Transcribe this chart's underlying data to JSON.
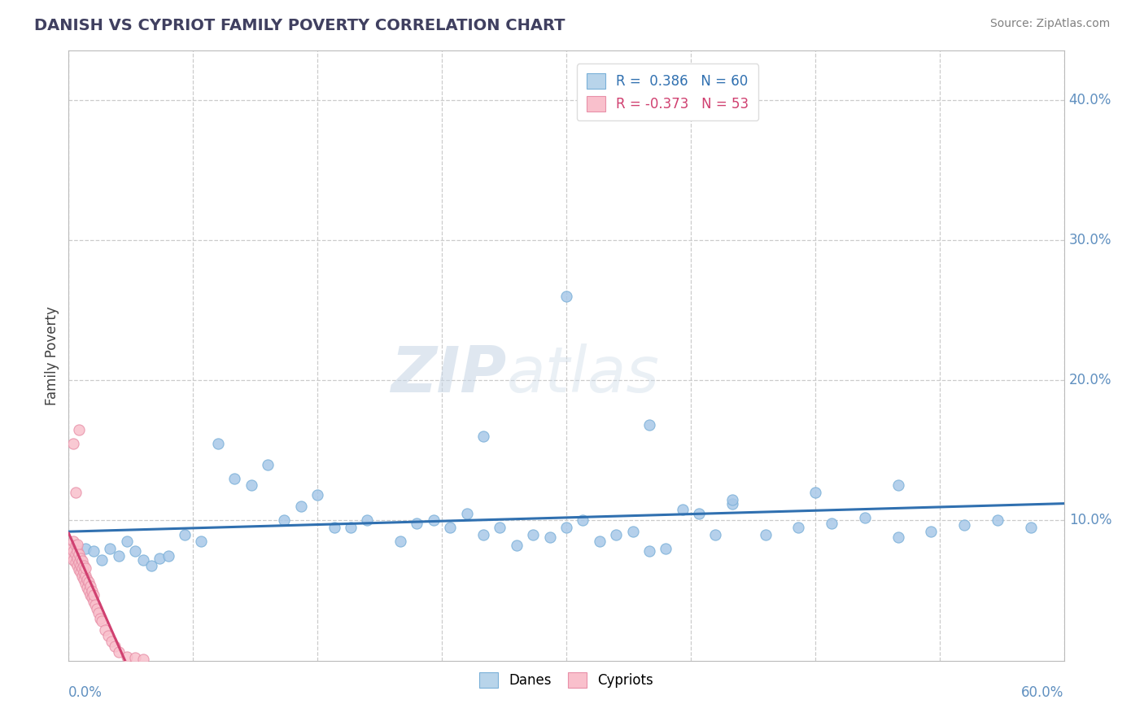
{
  "title": "DANISH VS CYPRIOT FAMILY POVERTY CORRELATION CHART",
  "source": "Source: ZipAtlas.com",
  "ylabel": "Family Poverty",
  "dane_R": 0.386,
  "dane_N": 60,
  "cypriot_R": -0.373,
  "cypriot_N": 53,
  "blue_scatter_color": "#a8c8e8",
  "blue_scatter_edge": "#7ab0d8",
  "pink_scatter_color": "#f9c0cc",
  "pink_scatter_edge": "#e890a8",
  "blue_line_color": "#3070b0",
  "pink_line_color": "#d04070",
  "blue_legend_face": "#b8d4ea",
  "pink_legend_face": "#f9c0cc",
  "watermark_color": "#c8d8e8",
  "title_color": "#404060",
  "source_color": "#808080",
  "ylabel_color": "#404040",
  "tick_color": "#6090c0",
  "grid_color": "#cccccc",
  "xlim": [
    0.0,
    0.6
  ],
  "ylim": [
    0.0,
    0.435
  ],
  "ytick_vals": [
    0.1,
    0.2,
    0.3,
    0.4
  ],
  "dane_x": [
    0.005,
    0.01,
    0.015,
    0.02,
    0.025,
    0.03,
    0.035,
    0.04,
    0.045,
    0.05,
    0.055,
    0.06,
    0.07,
    0.08,
    0.09,
    0.1,
    0.11,
    0.12,
    0.13,
    0.14,
    0.15,
    0.16,
    0.17,
    0.18,
    0.2,
    0.21,
    0.22,
    0.23,
    0.24,
    0.25,
    0.26,
    0.27,
    0.28,
    0.29,
    0.3,
    0.31,
    0.32,
    0.33,
    0.34,
    0.35,
    0.36,
    0.37,
    0.38,
    0.39,
    0.4,
    0.42,
    0.44,
    0.46,
    0.48,
    0.5,
    0.52,
    0.54,
    0.56,
    0.58,
    0.3,
    0.25,
    0.4,
    0.35,
    0.45,
    0.5
  ],
  "dane_y": [
    0.075,
    0.08,
    0.078,
    0.072,
    0.08,
    0.075,
    0.085,
    0.078,
    0.072,
    0.068,
    0.073,
    0.075,
    0.09,
    0.085,
    0.155,
    0.13,
    0.125,
    0.14,
    0.1,
    0.11,
    0.118,
    0.095,
    0.095,
    0.1,
    0.085,
    0.098,
    0.1,
    0.095,
    0.105,
    0.09,
    0.095,
    0.082,
    0.09,
    0.088,
    0.095,
    0.1,
    0.085,
    0.09,
    0.092,
    0.078,
    0.08,
    0.108,
    0.105,
    0.09,
    0.112,
    0.09,
    0.095,
    0.098,
    0.102,
    0.088,
    0.092,
    0.097,
    0.1,
    0.095,
    0.26,
    0.16,
    0.115,
    0.168,
    0.12,
    0.125
  ],
  "cypriot_x": [
    0.002,
    0.002,
    0.003,
    0.003,
    0.003,
    0.004,
    0.004,
    0.004,
    0.005,
    0.005,
    0.005,
    0.005,
    0.006,
    0.006,
    0.006,
    0.007,
    0.007,
    0.007,
    0.008,
    0.008,
    0.008,
    0.009,
    0.009,
    0.009,
    0.01,
    0.01,
    0.01,
    0.011,
    0.011,
    0.012,
    0.012,
    0.013,
    0.013,
    0.014,
    0.014,
    0.015,
    0.015,
    0.016,
    0.017,
    0.018,
    0.019,
    0.02,
    0.022,
    0.024,
    0.026,
    0.028,
    0.03,
    0.035,
    0.04,
    0.045,
    0.003,
    0.004,
    0.006
  ],
  "cypriot_y": [
    0.075,
    0.08,
    0.072,
    0.078,
    0.085,
    0.07,
    0.076,
    0.082,
    0.068,
    0.073,
    0.078,
    0.083,
    0.065,
    0.07,
    0.076,
    0.063,
    0.068,
    0.073,
    0.06,
    0.066,
    0.071,
    0.058,
    0.063,
    0.068,
    0.055,
    0.061,
    0.066,
    0.052,
    0.058,
    0.05,
    0.056,
    0.047,
    0.053,
    0.045,
    0.05,
    0.042,
    0.047,
    0.04,
    0.037,
    0.034,
    0.03,
    0.028,
    0.022,
    0.018,
    0.014,
    0.01,
    0.006,
    0.003,
    0.002,
    0.001,
    0.155,
    0.12,
    0.165
  ],
  "watermark_zip": "ZIP",
  "watermark_atlas": "atlas"
}
